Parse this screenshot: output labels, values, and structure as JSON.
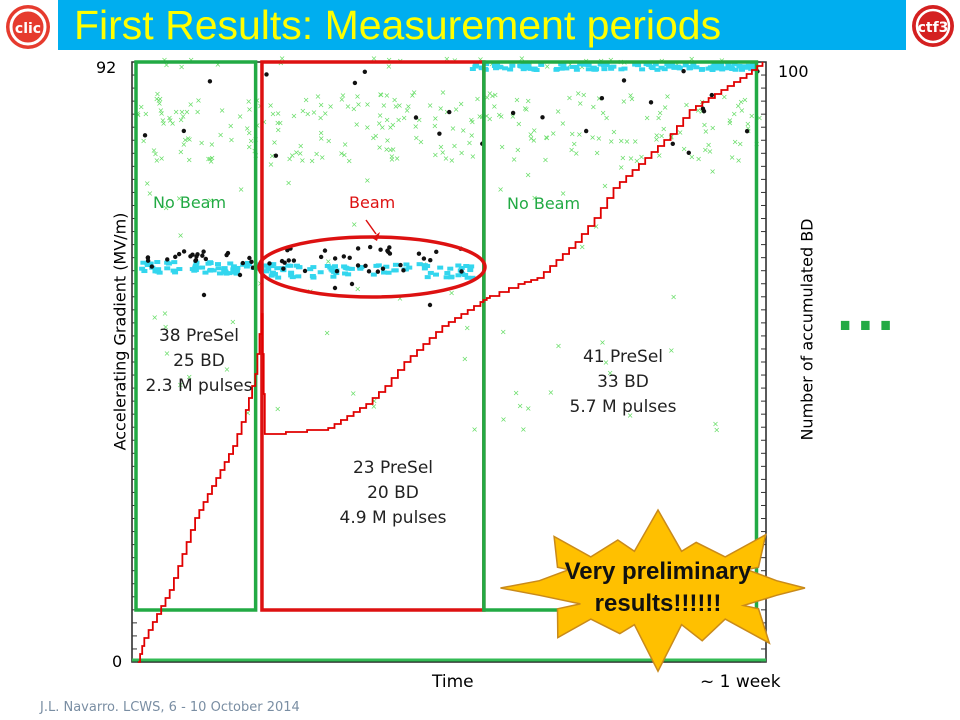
{
  "slide": {
    "title": "First Results: Measurement periods",
    "footer": "J.L. Navarro. LCWS, 6 - 10 October 2014",
    "logos": {
      "left": "clic-logo",
      "right": "ctf3-logo"
    },
    "ellipsis": "...",
    "callout": {
      "line1": "Very preliminary",
      "line2": "results!!!!!!"
    }
  },
  "chart_data": {
    "type": "scatter",
    "xlabel": "Time",
    "x_end_label": "~ 1 week",
    "ylabel": "Accelerating Gradient (MV/m)",
    "ylim": [
      0,
      92
    ],
    "y_ticks": [
      "0",
      "92"
    ],
    "y2label": "Number of accumulated BD",
    "y2lim": [
      0,
      100
    ],
    "y2_ticks": [
      "100"
    ],
    "colors": {
      "bd_markers": "#111111",
      "presel_markers": "#33d6ee",
      "pulses": "#66dd66",
      "accumulated_line": "#e00000",
      "no_beam": "#22aa44",
      "beam": "#dd1111",
      "callout": "#ffc000"
    },
    "periods": [
      {
        "label": "No Beam",
        "type": "no-beam",
        "x_range": [
          0,
          0.195
        ],
        "presel": "38 PreSel",
        "bd": "25 BD",
        "pulses": "2.3 M pulses"
      },
      {
        "label": "Beam",
        "type": "beam",
        "x_range": [
          0.205,
          0.555
        ],
        "presel": "23 PreSel",
        "bd": "20 BD",
        "pulses": "4.9 M pulses"
      },
      {
        "label": "No Beam",
        "type": "no-beam",
        "x_range": [
          0.555,
          0.985
        ],
        "presel": "41 PreSel",
        "bd": "33 BD",
        "pulses": "5.7 M pulses"
      }
    ],
    "accumulated_bd": {
      "x": [
        0,
        0.01,
        0.03,
        0.05,
        0.07,
        0.09,
        0.11,
        0.13,
        0.15,
        0.17,
        0.185,
        0.195,
        0.2,
        0.3,
        0.33,
        0.36,
        0.39,
        0.42,
        0.45,
        0.48,
        0.51,
        0.54,
        0.555,
        0.6,
        0.63,
        0.66,
        0.69,
        0.72,
        0.75,
        0.78,
        0.81,
        0.84,
        0.87,
        0.9,
        0.93,
        0.96,
        0.985
      ],
      "y": [
        0,
        4,
        8,
        12,
        18,
        24,
        28,
        32,
        36,
        42,
        48,
        58,
        38,
        39,
        41,
        43,
        46,
        50,
        53,
        56,
        58,
        60,
        61,
        63,
        64,
        67,
        70,
        74,
        79,
        82,
        85,
        88,
        92,
        94,
        96,
        98,
        100
      ]
    },
    "highlight": "beam period cluster at ~67 MV/m"
  }
}
